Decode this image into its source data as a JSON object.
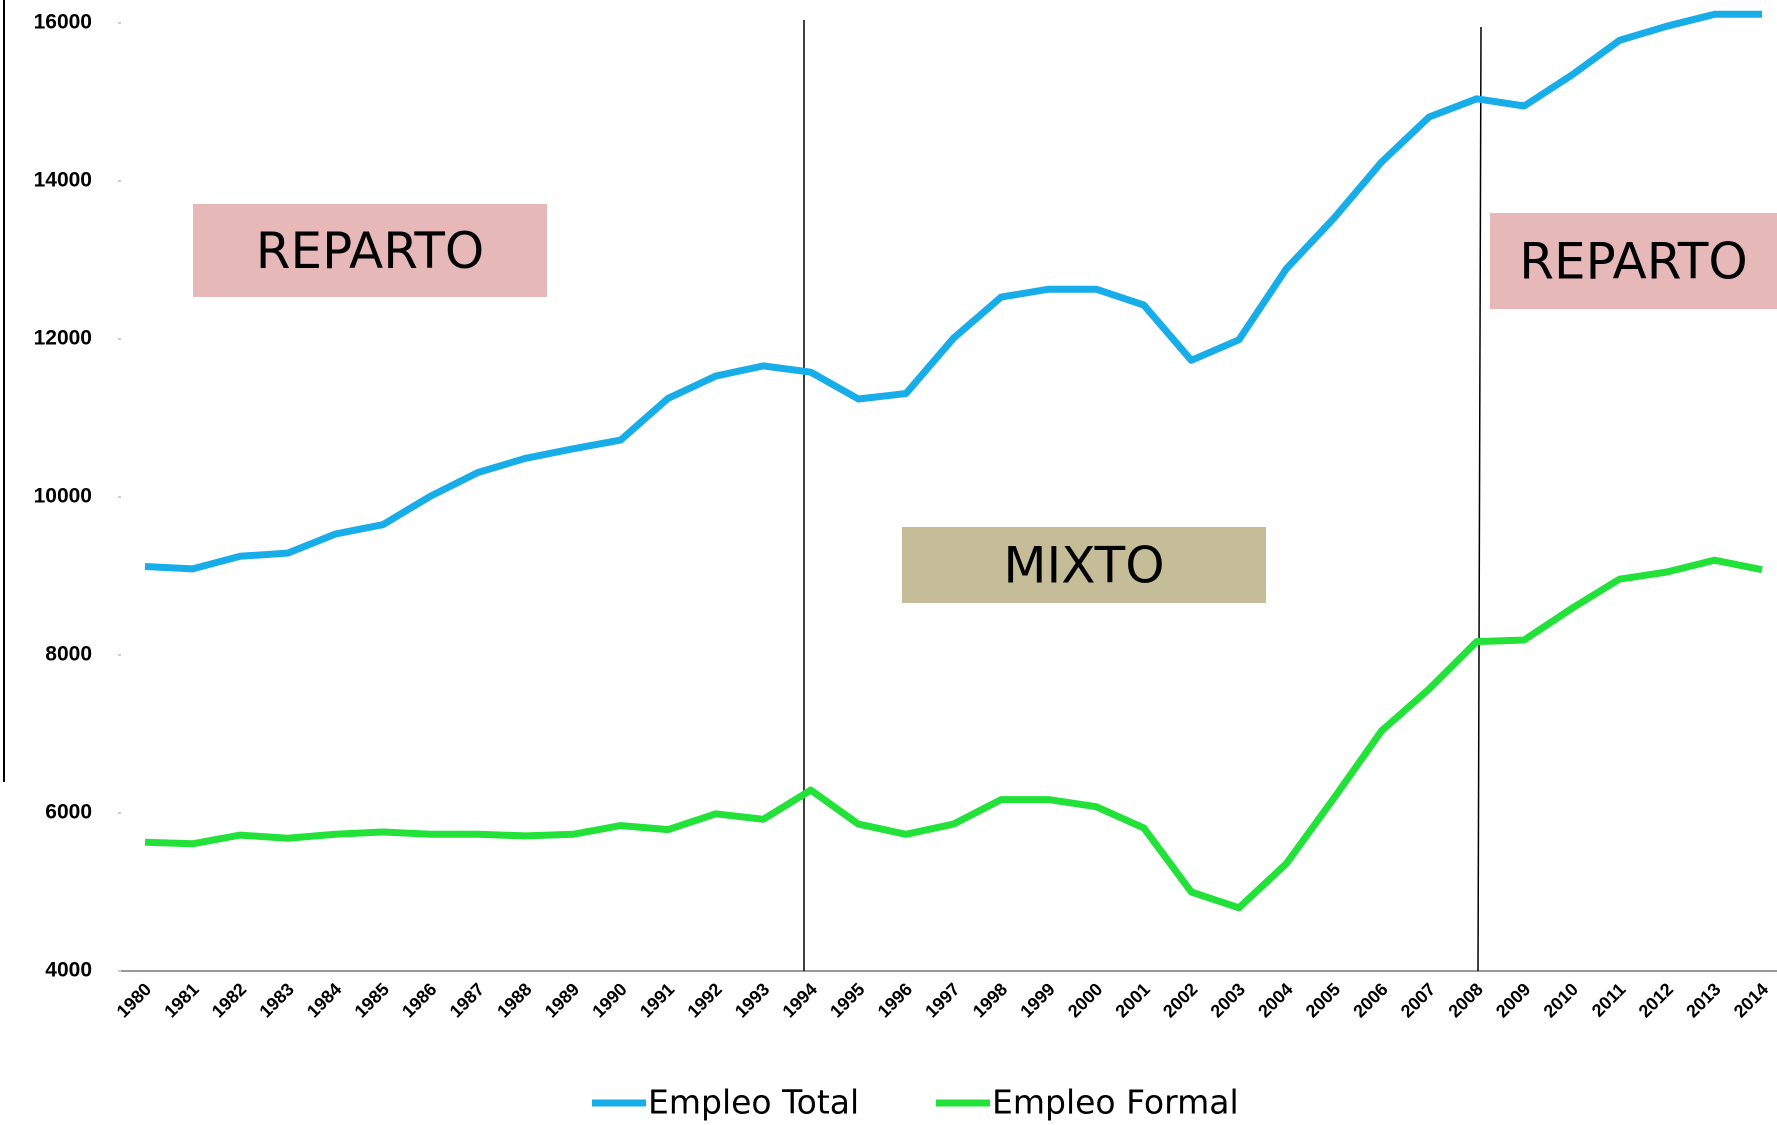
{
  "chart_data": {
    "type": "line",
    "categories": [
      "1980",
      "1981",
      "1982",
      "1983",
      "1984",
      "1985",
      "1986",
      "1987",
      "1988",
      "1989",
      "1990",
      "1991",
      "1992",
      "1993",
      "1994",
      "1995",
      "1996",
      "1997",
      "1998",
      "1999",
      "2000",
      "2001",
      "2002",
      "2003",
      "2004",
      "2005",
      "2006",
      "2007",
      "2008",
      "2009",
      "2010",
      "2011",
      "2012",
      "2013",
      "2014"
    ],
    "series": [
      {
        "name": "Empleo Total",
        "color": "#17ade8",
        "values": [
          9120,
          9090,
          9250,
          9290,
          9530,
          9650,
          10010,
          10310,
          10490,
          10610,
          10720,
          11250,
          11530,
          11660,
          11580,
          11240,
          11310,
          12010,
          12530,
          12630,
          12630,
          12430,
          11730,
          11990,
          12890,
          13530,
          14240,
          14810,
          15040,
          14950,
          15340,
          15780,
          15960,
          16110,
          16110
        ]
      },
      {
        "name": "Empleo Formal",
        "color": "#22e23a",
        "values": [
          5630,
          5610,
          5720,
          5680,
          5730,
          5760,
          5730,
          5730,
          5710,
          5730,
          5840,
          5790,
          5990,
          5920,
          6290,
          5860,
          5730,
          5860,
          6170,
          6170,
          6080,
          5810,
          5000,
          4800,
          5360,
          6190,
          7040,
          7570,
          8170,
          8190,
          8590,
          8960,
          9050,
          9200,
          9080
        ]
      }
    ],
    "ylim": [
      4000,
      16000
    ],
    "yticks": [
      4000,
      6000,
      8000,
      10000,
      12000,
      14000,
      16000
    ],
    "annotations": [
      {
        "text": "REPARTO",
        "color": "#e6b9b8"
      },
      {
        "text": "MIXTO",
        "color": "#c4bd97"
      },
      {
        "text": "REPARTO",
        "color": "#e6b9b8"
      }
    ]
  }
}
